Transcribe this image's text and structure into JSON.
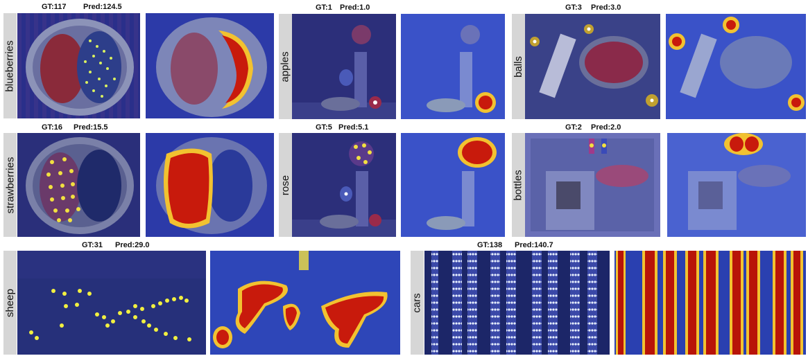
{
  "panels": [
    {
      "id": "blueberries",
      "label": "blueberries",
      "gt": "GT:117",
      "pred": "Pred:124.5"
    },
    {
      "id": "apples",
      "label": "apples",
      "gt": "GT:1",
      "pred": "Pred:1.0"
    },
    {
      "id": "balls",
      "label": "balls",
      "gt": "GT:3",
      "pred": "Pred:3.0"
    },
    {
      "id": "strawberries",
      "label": "strawberries",
      "gt": "GT:16",
      "pred": "Pred:15.5"
    },
    {
      "id": "rose",
      "label": "rose",
      "gt": "GT:5",
      "pred": "Pred:5.1"
    },
    {
      "id": "bottles",
      "label": "bottles",
      "gt": "GT:2",
      "pred": "Pred:2.0"
    },
    {
      "id": "sheep",
      "label": "sheep",
      "gt": "GT:31",
      "pred": "Pred:29.0"
    },
    {
      "id": "cars",
      "label": "cars",
      "gt": "GT:138",
      "pred": "Pred:140.7"
    }
  ],
  "colors": {
    "density_bg": "#1f2f9a",
    "heat_hot": "#c81a0c",
    "heat_warm": "#f2c230",
    "label_bar": "#d6d6d6"
  }
}
